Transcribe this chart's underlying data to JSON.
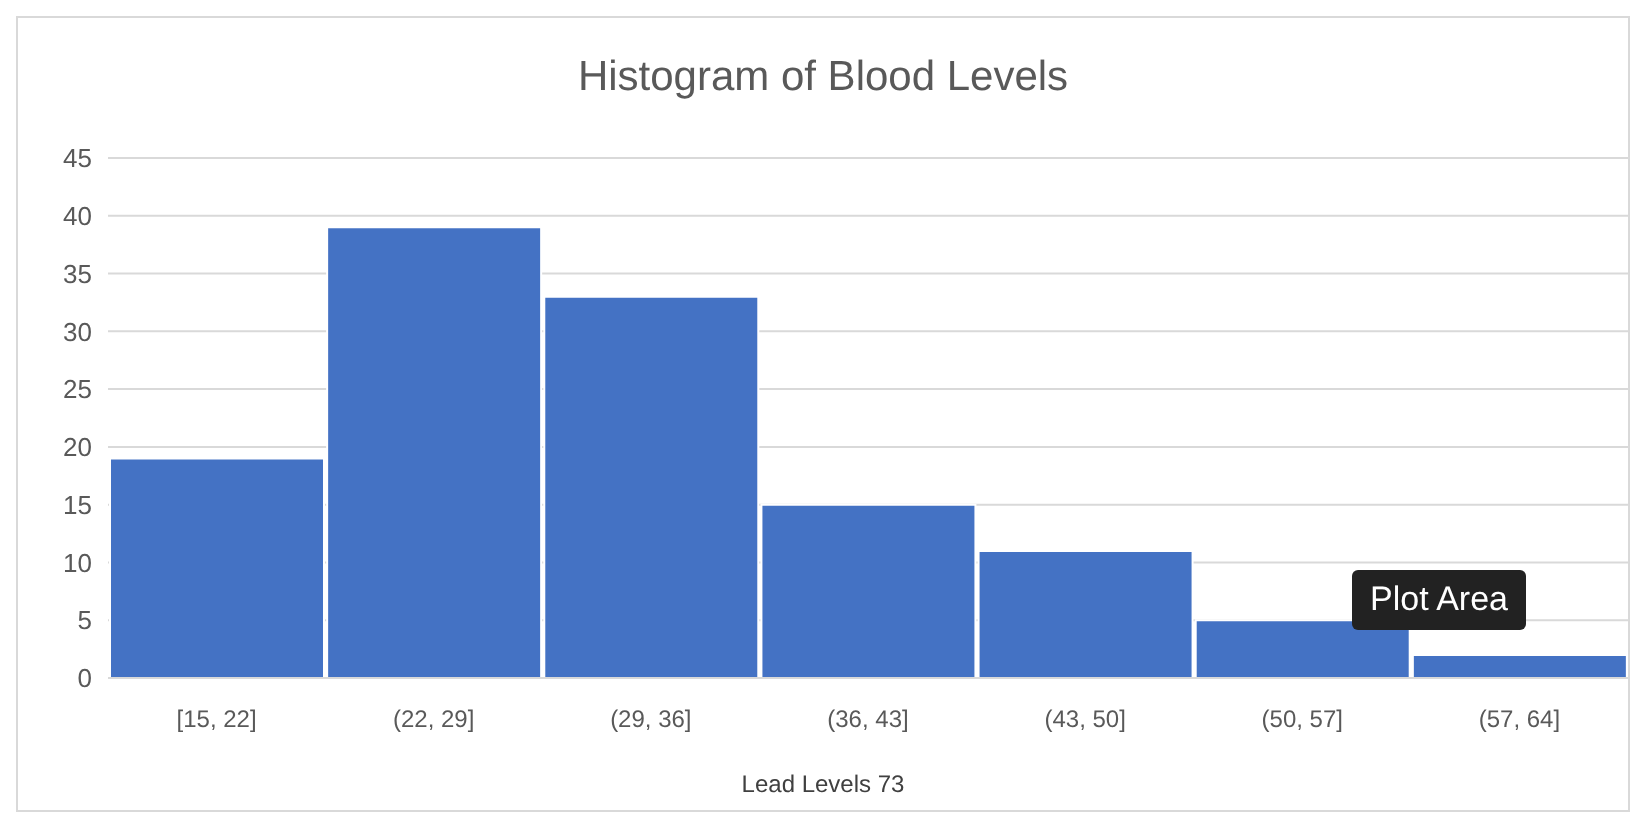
{
  "chart_data": {
    "type": "bar",
    "title": "Histogram of Blood Levels",
    "xlabel": "Lead Levels 73",
    "categories": [
      "[15, 22]",
      "(22, 29]",
      "(29, 36]",
      "(36, 43]",
      "(43, 50]",
      "(50, 57]",
      "(57, 64]"
    ],
    "values": [
      19,
      39,
      33,
      15,
      11,
      5,
      2
    ],
    "color": "#4472c4",
    "ylim": [
      0,
      45
    ],
    "yticks": [
      0,
      5,
      10,
      15,
      20,
      25,
      30,
      35,
      40,
      45
    ],
    "grid": "y",
    "annotations": [
      "Plot Area"
    ]
  }
}
